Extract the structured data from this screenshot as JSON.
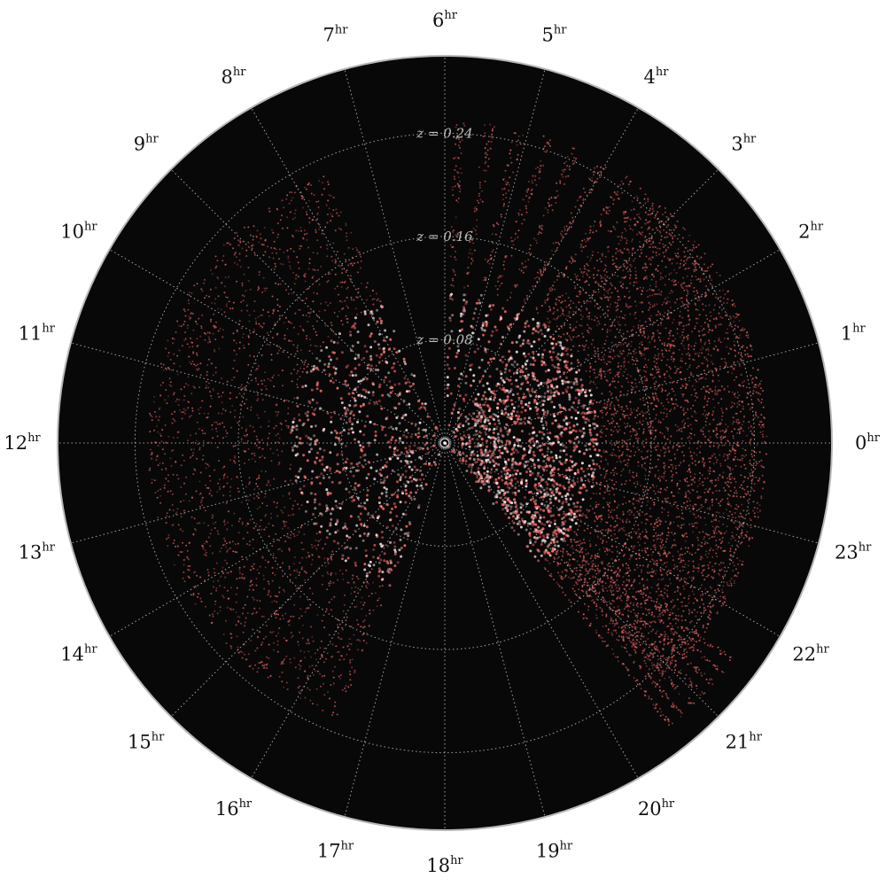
{
  "chart_data": {
    "type": "scatter",
    "projection": "polar",
    "title": "",
    "angular_axis": {
      "unit_superscript": "hr",
      "tick_labels": [
        "0",
        "1",
        "2",
        "3",
        "4",
        "5",
        "6",
        "7",
        "8",
        "9",
        "10",
        "11",
        "12",
        "13",
        "14",
        "15",
        "16",
        "17",
        "18",
        "19",
        "20",
        "21",
        "22",
        "23"
      ],
      "direction": "counterclockwise",
      "zero_position": "right"
    },
    "radial_axis": {
      "range": [
        0,
        0.3
      ],
      "tick_values": [
        0.08,
        0.16,
        0.24
      ],
      "tick_labels": [
        "z = 0.08",
        "z = 0.16",
        "z = 0.24"
      ],
      "grid": true
    },
    "series": [
      {
        "color": "#ff6b6b",
        "regions": [
          {
            "ra_hr_range": [
              7.6,
              16.6
            ],
            "z_range": [
              0.0,
              0.23
            ],
            "density": "high"
          },
          {
            "ra_hr_range": [
              20.8,
              24.0
            ],
            "z_range": [
              0.0,
              0.25
            ],
            "density": "high"
          },
          {
            "ra_hr_range": [
              0.0,
              3.5
            ],
            "z_range": [
              0.0,
              0.25
            ],
            "density": "high"
          },
          {
            "ra_hr_range": [
              3.5,
              6.0
            ],
            "z_range": [
              0.0,
              0.25
            ],
            "density": "sparse-stripes"
          },
          {
            "ra_hr_range": [
              20.5,
              21.6
            ],
            "z_range": [
              0.0,
              0.28
            ],
            "density": "sparse-stripes"
          }
        ]
      }
    ],
    "background": "#080808",
    "grid_color": "#bdbdbd"
  }
}
